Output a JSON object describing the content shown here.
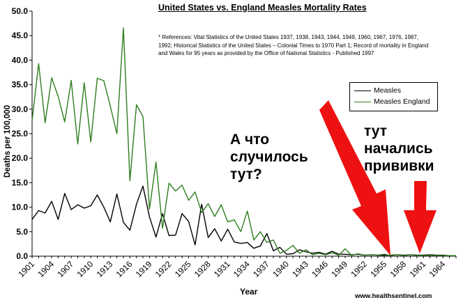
{
  "chart_data": {
    "type": "line",
    "title": "United States vs. England Measles Mortality Rates",
    "note": "* References: Vital Statistics of the United States 1937, 1938, 1943, 1944, 1949, 1960, 1967, 1976, 1987, 1992; Historical Statistics of the United States – Colonial Times to 1970 Part 1; Record of mortality in England and Wales for 95 years as provided by the Office of National Statistics - Published 1997",
    "xlabel": "Year",
    "ylabel": "Deaths per 100,000",
    "ylim": [
      0,
      50
    ],
    "y_ticks": [
      "0.0",
      "5.0",
      "10.0",
      "15.0",
      "20.0",
      "25.0",
      "30.0",
      "35.0",
      "40.0",
      "45.0",
      "50.0"
    ],
    "x_start": 1901,
    "x_end": 1966,
    "x_tick_labels": [
      "1901",
      "1904",
      "1907",
      "1910",
      "1913",
      "1916",
      "1919",
      "1922",
      "1925",
      "1928",
      "1931",
      "1934",
      "1937",
      "1940",
      "1943",
      "1946",
      "1949",
      "1952",
      "1955",
      "1958",
      "1961",
      "1964"
    ],
    "grid": false,
    "legend_position": "right",
    "series": [
      {
        "name": "Measles",
        "color": "#000000",
        "values": [
          7.5,
          9.3,
          8.8,
          11.2,
          7.5,
          12.8,
          9.5,
          10.5,
          9.8,
          10.3,
          12.5,
          10.0,
          7.0,
          12.7,
          6.9,
          5.3,
          10.6,
          14.3,
          8.0,
          3.9,
          8.7,
          4.2,
          4.3,
          8.7,
          7.1,
          2.3,
          10.6,
          3.8,
          5.6,
          3.1,
          5.5,
          2.9,
          2.6,
          2.8,
          1.6,
          2.1,
          4.6,
          1.1,
          1.8,
          0.4,
          0.5,
          1.3,
          0.9,
          0.6,
          0.8,
          0.4,
          1.0,
          0.4,
          0.4,
          0.3,
          0.4,
          0.2,
          0.3,
          0.2,
          0.2,
          0.2,
          0.3,
          0.2,
          0.3,
          0.2,
          0.2,
          0.3,
          0.2,
          0.2,
          0.1,
          0.1
        ]
      },
      {
        "name": "Measles England",
        "color": "#2e7d1e",
        "values": [
          27.6,
          39.3,
          27.2,
          36.4,
          32.6,
          27.4,
          35.9,
          22.9,
          35.4,
          23.3,
          36.3,
          35.8,
          30.6,
          25.0,
          46.6,
          15.4,
          30.9,
          28.5,
          9.6,
          19.2,
          5.7,
          14.9,
          13.3,
          14.5,
          11.4,
          13.1,
          8.9,
          10.7,
          8.1,
          10.5,
          7.0,
          7.4,
          5.0,
          9.2,
          3.3,
          5.0,
          2.8,
          3.3,
          0.6,
          1.2,
          2.2,
          0.6,
          1.3,
          0.3,
          0.6,
          0.3,
          0.7,
          0.2,
          1.5,
          0.2,
          0.5,
          0.2,
          0.3,
          0.2,
          0.4,
          0.1,
          0.3,
          0.1,
          0.3,
          0.1,
          0.1,
          0.2,
          0.1,
          0.1,
          0.1,
          0.1
        ]
      }
    ]
  },
  "annotations": [
    {
      "lines": [
        "А что",
        "случилось",
        "тут?"
      ]
    },
    {
      "lines": [
        "тут",
        "начались",
        "прививки"
      ]
    }
  ],
  "arrows": {
    "color": "#ee1111"
  },
  "credit": "www.healthsentinel.com"
}
